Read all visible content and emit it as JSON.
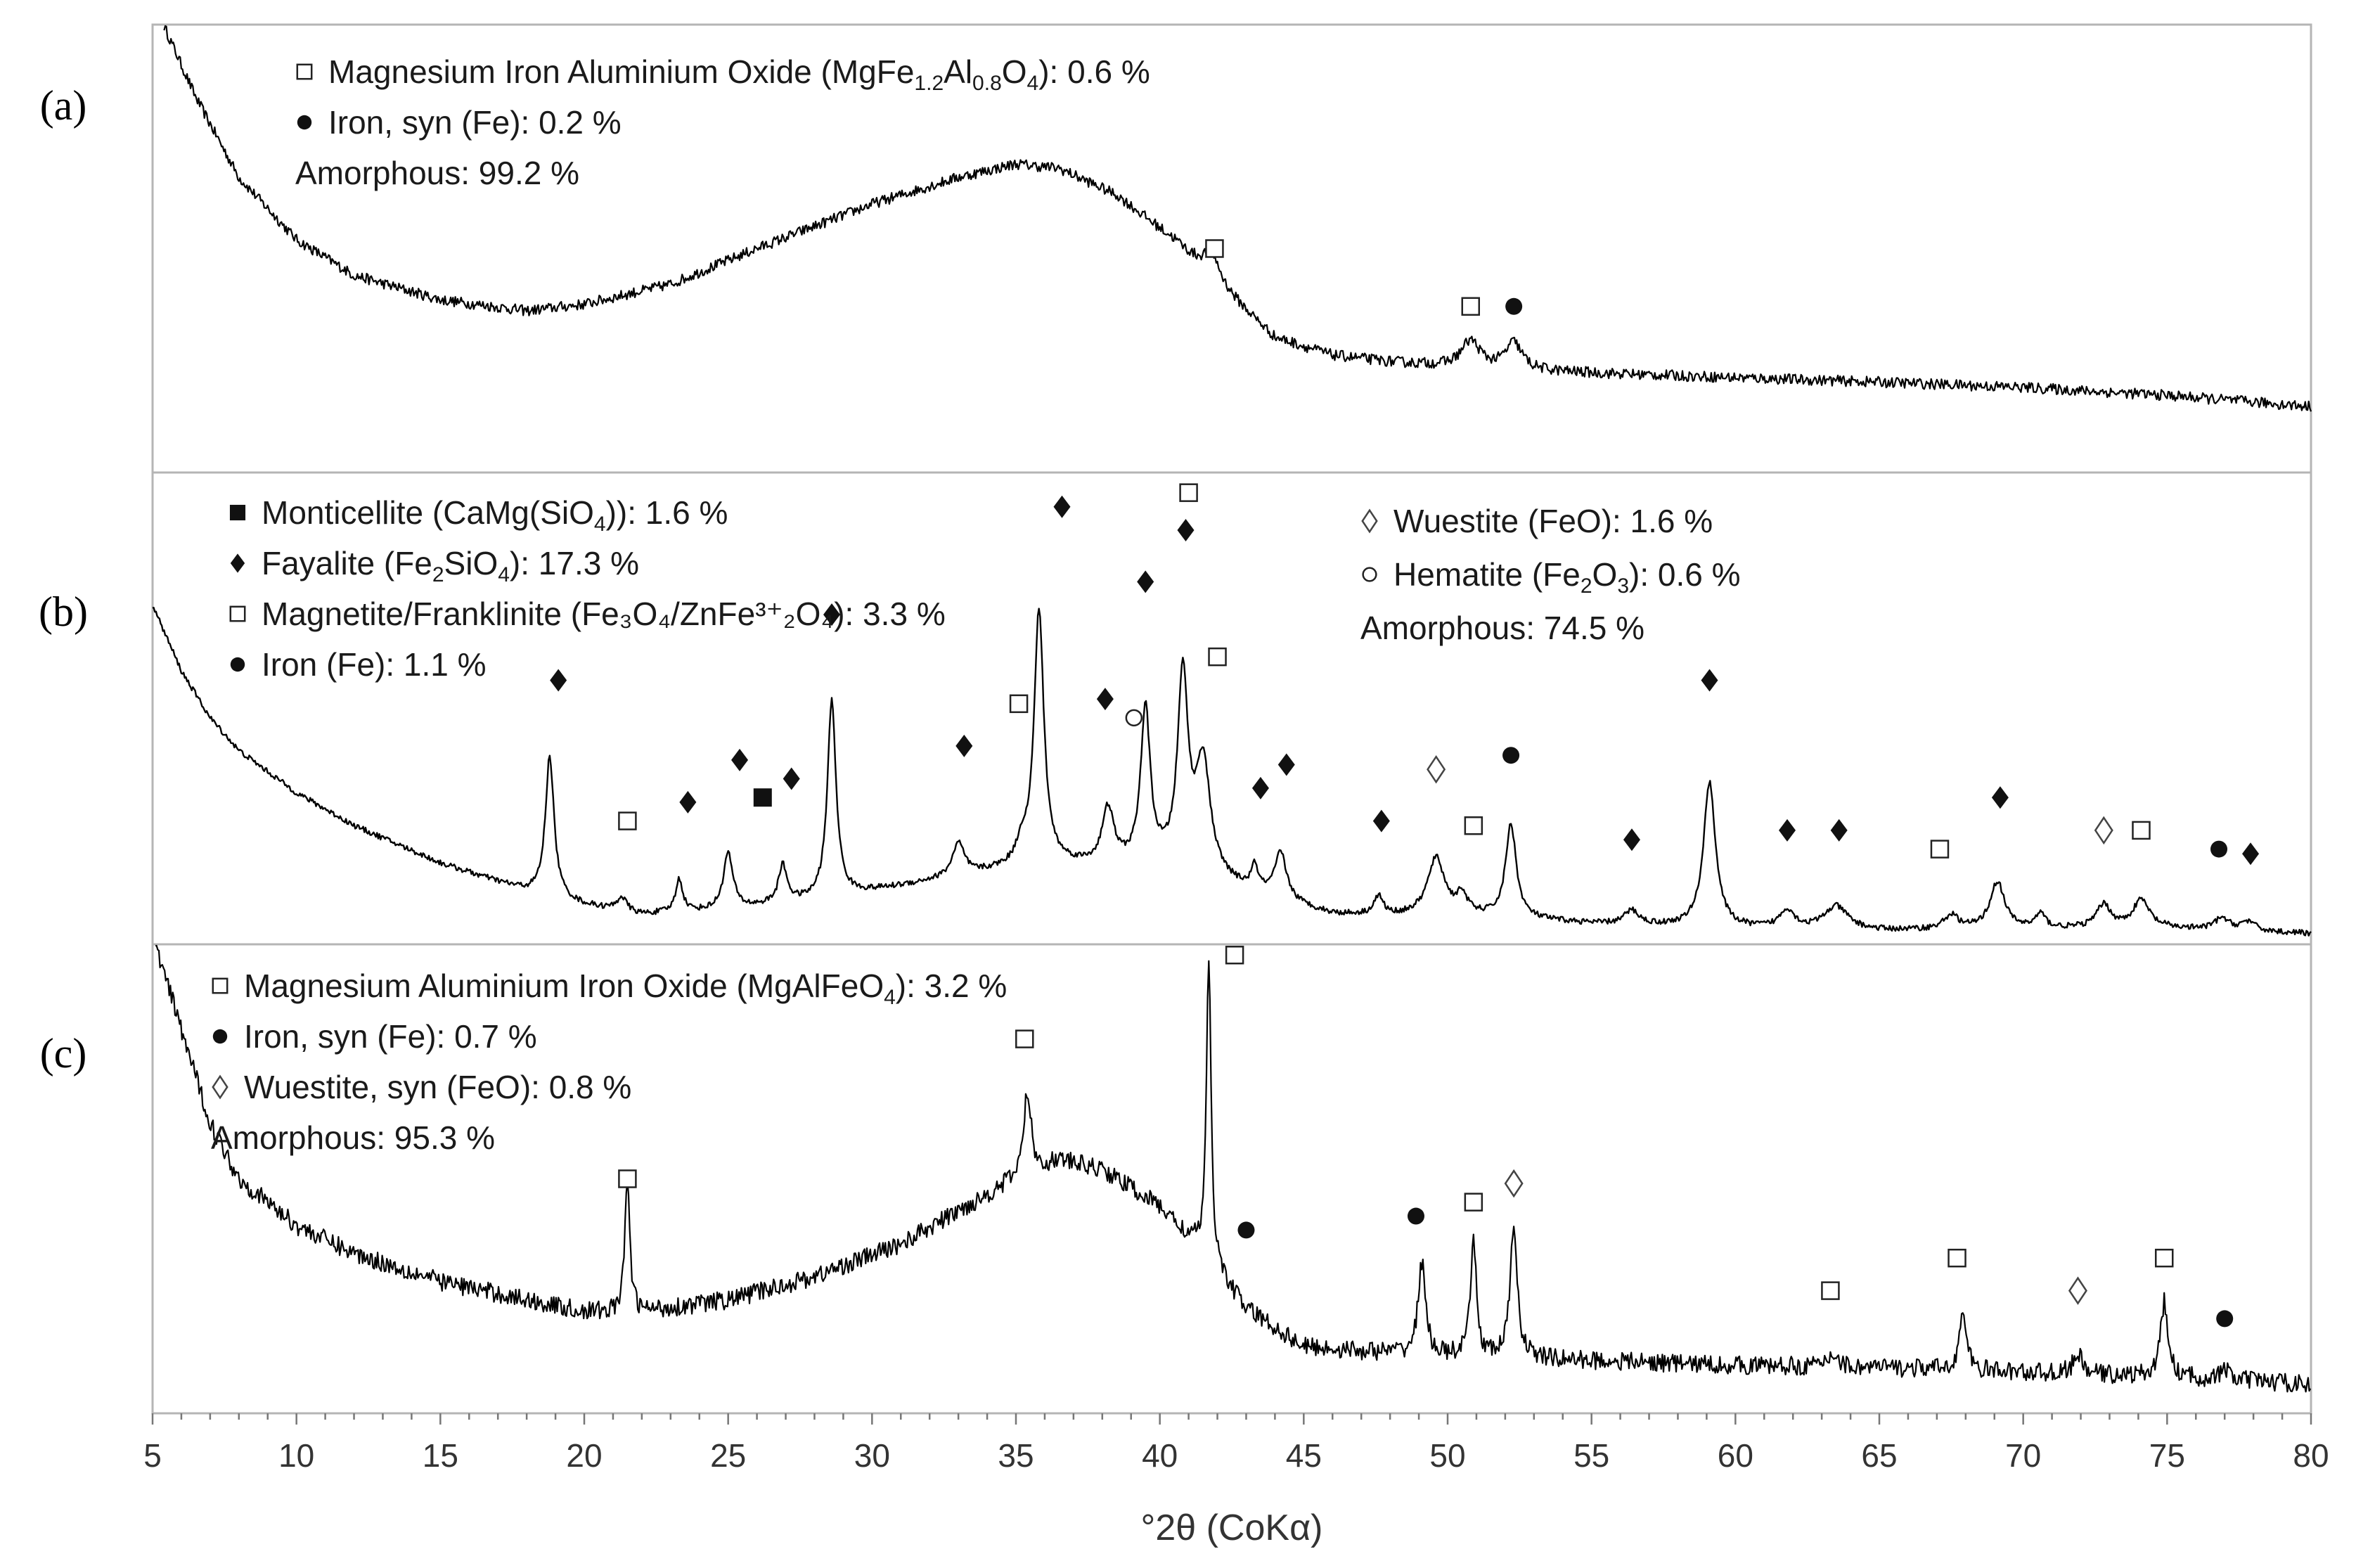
{
  "chart_data": {
    "type": "line",
    "title": "",
    "xlabel": "°2θ (CoKα)",
    "ylabel": "",
    "xlim": [
      5,
      80
    ],
    "xticks": [
      "5",
      "10",
      "15",
      "20",
      "25",
      "30",
      "35",
      "40",
      "45",
      "50",
      "55",
      "60",
      "65",
      "70",
      "75",
      "80"
    ],
    "grid": false,
    "panels": [
      {
        "label": "(a)",
        "legend": [
          {
            "marker": "open-square",
            "parts": [
              {
                "t": "Magnesium Iron Aluminium Oxide (MgFe"
              },
              {
                "t": "1.2",
                "sub": true
              },
              {
                "t": "Al"
              },
              {
                "t": "0.8",
                "sub": true
              },
              {
                "t": "O"
              },
              {
                "t": "4",
                "sub": true
              },
              {
                "t": "): 0.6 %"
              }
            ]
          },
          {
            "marker": "filled-circle",
            "parts": [
              {
                "t": "Iron, syn (Fe): 0.2 %"
              }
            ]
          },
          {
            "marker": "none",
            "parts": [
              {
                "t": "Amorphous: 99.2 %"
              }
            ]
          }
        ],
        "baseline": [
          [
            5.4,
            1.0
          ],
          [
            6.5,
            0.84
          ],
          [
            8,
            0.66
          ],
          [
            10,
            0.52
          ],
          [
            12,
            0.44
          ],
          [
            15,
            0.385
          ],
          [
            18,
            0.36
          ],
          [
            20,
            0.375
          ],
          [
            23,
            0.42
          ],
          [
            26,
            0.5
          ],
          [
            30,
            0.6
          ],
          [
            33,
            0.66
          ],
          [
            35,
            0.69
          ],
          [
            36.5,
            0.68
          ],
          [
            38.5,
            0.62
          ],
          [
            40.5,
            0.52
          ],
          [
            42,
            0.42
          ],
          [
            44,
            0.3
          ],
          [
            46,
            0.26
          ],
          [
            48,
            0.245
          ],
          [
            50,
            0.235
          ],
          [
            53,
            0.225
          ],
          [
            56,
            0.218
          ],
          [
            60,
            0.21
          ],
          [
            65,
            0.2
          ],
          [
            70,
            0.188
          ],
          [
            75,
            0.17
          ],
          [
            80,
            0.145
          ]
        ],
        "peaks": [
          {
            "x": 41.8,
            "height": 0.06,
            "width": 0.35
          },
          {
            "x": 50.8,
            "height": 0.06,
            "width": 0.4
          },
          {
            "x": 52.3,
            "height": 0.06,
            "width": 0.35
          }
        ],
        "noise": 0.012,
        "annotations": [
          {
            "marker": "open-square",
            "x": 41.9,
            "y": 0.5
          },
          {
            "marker": "open-square",
            "x": 50.8,
            "y": 0.37
          },
          {
            "marker": "filled-circle",
            "x": 52.3,
            "y": 0.37
          }
        ]
      },
      {
        "label": "(b)",
        "legend": [
          {
            "marker": "filled-square",
            "parts": [
              {
                "t": "Monticellite (CaMg(SiO"
              },
              {
                "t": "4",
                "sub": true
              },
              {
                "t": ")): 1.6 %"
              }
            ]
          },
          {
            "marker": "filled-diamond",
            "parts": [
              {
                "t": " Fayalite (Fe"
              },
              {
                "t": "2",
                "sub": true
              },
              {
                "t": "SiO"
              },
              {
                "t": "4",
                "sub": true
              },
              {
                "t": "): 17.3 %"
              }
            ]
          },
          {
            "marker": "open-square",
            "parts": [
              {
                "t": "Magnetite/Franklinite (Fe₃O₄/ZnFe³⁺₂O₄): 3.3 %"
              }
            ]
          },
          {
            "marker": "filled-circle",
            "parts": [
              {
                "t": "Iron (Fe): 1.1 %"
              }
            ]
          },
          {
            "marker": "open-diamond",
            "parts": [
              {
                "t": "Wuestite (FeO): 1.6 %"
              }
            ]
          },
          {
            "marker": "open-circle",
            "parts": [
              {
                "t": "Hematite (Fe"
              },
              {
                "t": "2",
                "sub": true
              },
              {
                "t": "O"
              },
              {
                "t": "3",
                "sub": true
              },
              {
                "t": "): 0.6 %"
              }
            ]
          },
          {
            "marker": "none",
            "parts": [
              {
                "t": "Amorphous: 74.5 %"
              }
            ]
          }
        ],
        "baseline": [
          [
            5,
            0.72
          ],
          [
            6,
            0.58
          ],
          [
            7,
            0.48
          ],
          [
            8,
            0.41
          ],
          [
            10,
            0.32
          ],
          [
            12,
            0.25
          ],
          [
            15,
            0.17
          ],
          [
            18,
            0.11
          ],
          [
            20,
            0.08
          ],
          [
            22,
            0.06
          ],
          [
            25,
            0.07
          ],
          [
            28,
            0.09
          ],
          [
            30,
            0.11
          ],
          [
            32,
            0.13
          ],
          [
            34,
            0.15
          ],
          [
            36,
            0.17
          ],
          [
            38,
            0.16
          ],
          [
            40,
            0.16
          ],
          [
            42,
            0.13
          ],
          [
            44,
            0.09
          ],
          [
            46,
            0.06
          ],
          [
            48,
            0.055
          ],
          [
            50,
            0.06
          ],
          [
            55,
            0.04
          ],
          [
            60,
            0.03
          ],
          [
            65,
            0.025
          ],
          [
            70,
            0.03
          ],
          [
            75,
            0.03
          ],
          [
            80,
            0.02
          ]
        ],
        "peaks": [
          {
            "x": 18.8,
            "height": 0.3,
            "width": 0.18
          },
          {
            "x": 21.3,
            "height": 0.03,
            "width": 0.2
          },
          {
            "x": 23.3,
            "height": 0.07,
            "width": 0.15
          },
          {
            "x": 25.0,
            "height": 0.12,
            "width": 0.2
          },
          {
            "x": 26.9,
            "height": 0.08,
            "width": 0.18
          },
          {
            "x": 28.6,
            "height": 0.42,
            "width": 0.18
          },
          {
            "x": 33.0,
            "height": 0.07,
            "width": 0.25
          },
          {
            "x": 35.2,
            "height": 0.04,
            "width": 0.2
          },
          {
            "x": 35.8,
            "height": 0.54,
            "width": 0.2
          },
          {
            "x": 38.2,
            "height": 0.12,
            "width": 0.25
          },
          {
            "x": 39.5,
            "height": 0.33,
            "width": 0.2
          },
          {
            "x": 40.8,
            "height": 0.41,
            "width": 0.22
          },
          {
            "x": 41.5,
            "height": 0.24,
            "width": 0.3
          },
          {
            "x": 43.3,
            "height": 0.05,
            "width": 0.15
          },
          {
            "x": 44.2,
            "height": 0.1,
            "width": 0.25
          },
          {
            "x": 47.6,
            "height": 0.04,
            "width": 0.2
          },
          {
            "x": 49.6,
            "height": 0.12,
            "width": 0.35
          },
          {
            "x": 50.5,
            "height": 0.04,
            "width": 0.2
          },
          {
            "x": 52.2,
            "height": 0.2,
            "width": 0.22
          },
          {
            "x": 56.4,
            "height": 0.03,
            "width": 0.3
          },
          {
            "x": 59.1,
            "height": 0.31,
            "width": 0.25
          },
          {
            "x": 61.8,
            "height": 0.04,
            "width": 0.3
          },
          {
            "x": 63.5,
            "height": 0.05,
            "width": 0.5
          },
          {
            "x": 67.5,
            "height": 0.03,
            "width": 0.3
          },
          {
            "x": 69.1,
            "height": 0.1,
            "width": 0.3
          },
          {
            "x": 70.6,
            "height": 0.03,
            "width": 0.2
          },
          {
            "x": 72.8,
            "height": 0.05,
            "width": 0.3
          },
          {
            "x": 74.1,
            "height": 0.06,
            "width": 0.35
          },
          {
            "x": 76.9,
            "height": 0.025,
            "width": 0.3
          },
          {
            "x": 77.8,
            "height": 0.02,
            "width": 0.3
          }
        ],
        "noise": 0.006,
        "annotations": [
          {
            "marker": "filled-diamond",
            "x": 19.1,
            "y": 0.56
          },
          {
            "marker": "open-square",
            "x": 21.5,
            "y": 0.26
          },
          {
            "marker": "filled-diamond",
            "x": 23.6,
            "y": 0.3
          },
          {
            "marker": "filled-diamond",
            "x": 25.4,
            "y": 0.39
          },
          {
            "marker": "filled-square",
            "x": 26.2,
            "y": 0.31
          },
          {
            "marker": "filled-diamond",
            "x": 27.2,
            "y": 0.35
          },
          {
            "marker": "filled-diamond",
            "x": 28.6,
            "y": 0.7
          },
          {
            "marker": "filled-diamond",
            "x": 33.2,
            "y": 0.42
          },
          {
            "marker": "open-square",
            "x": 35.1,
            "y": 0.51
          },
          {
            "marker": "filled-diamond",
            "x": 36.6,
            "y": 0.93
          },
          {
            "marker": "filled-diamond",
            "x": 38.1,
            "y": 0.52
          },
          {
            "marker": "open-circle",
            "x": 39.1,
            "y": 0.48
          },
          {
            "marker": "filled-diamond",
            "x": 39.5,
            "y": 0.77
          },
          {
            "marker": "filled-diamond",
            "x": 40.9,
            "y": 0.88
          },
          {
            "marker": "open-square",
            "x": 41.0,
            "y": 0.96
          },
          {
            "marker": "open-square",
            "x": 42.0,
            "y": 0.61
          },
          {
            "marker": "filled-diamond",
            "x": 43.5,
            "y": 0.33
          },
          {
            "marker": "filled-diamond",
            "x": 44.4,
            "y": 0.38
          },
          {
            "marker": "filled-diamond",
            "x": 47.7,
            "y": 0.26
          },
          {
            "marker": "open-diamond",
            "x": 49.6,
            "y": 0.37
          },
          {
            "marker": "open-square",
            "x": 50.9,
            "y": 0.25
          },
          {
            "marker": "filled-circle",
            "x": 52.2,
            "y": 0.4
          },
          {
            "marker": "filled-diamond",
            "x": 56.4,
            "y": 0.22
          },
          {
            "marker": "filled-diamond",
            "x": 59.1,
            "y": 0.56
          },
          {
            "marker": "filled-diamond",
            "x": 61.8,
            "y": 0.24
          },
          {
            "marker": "filled-diamond",
            "x": 63.6,
            "y": 0.24
          },
          {
            "marker": "open-square",
            "x": 67.1,
            "y": 0.2
          },
          {
            "marker": "filled-diamond",
            "x": 69.2,
            "y": 0.31
          },
          {
            "marker": "open-diamond",
            "x": 72.8,
            "y": 0.24
          },
          {
            "marker": "open-square",
            "x": 74.1,
            "y": 0.24
          },
          {
            "marker": "filled-circle",
            "x": 76.8,
            "y": 0.2
          },
          {
            "marker": "filled-diamond",
            "x": 77.9,
            "y": 0.19
          }
        ]
      },
      {
        "label": "(c)",
        "legend": [
          {
            "marker": "open-square",
            "parts": [
              {
                "t": "Magnesium Aluminium Iron Oxide (MgAlFeO"
              },
              {
                "t": "4",
                "sub": true
              },
              {
                "t": "): 3.2 %"
              }
            ]
          },
          {
            "marker": "filled-circle",
            "parts": [
              {
                "t": "Iron, syn (Fe): 0.7 %"
              }
            ]
          },
          {
            "marker": "open-diamond",
            "parts": [
              {
                "t": "Wuestite, syn (FeO): 0.8 %"
              }
            ]
          },
          {
            "marker": "none",
            "parts": [
              {
                "t": "Amorphous: 95.3 %"
              }
            ]
          }
        ],
        "baseline": [
          [
            5.1,
            1.0
          ],
          [
            6,
            0.82
          ],
          [
            7,
            0.62
          ],
          [
            8,
            0.5
          ],
          [
            10,
            0.4
          ],
          [
            12,
            0.34
          ],
          [
            15,
            0.28
          ],
          [
            18,
            0.24
          ],
          [
            20,
            0.215
          ],
          [
            22,
            0.215
          ],
          [
            25,
            0.24
          ],
          [
            28,
            0.29
          ],
          [
            31,
            0.36
          ],
          [
            33,
            0.43
          ],
          [
            35,
            0.5
          ],
          [
            36.5,
            0.54
          ],
          [
            38,
            0.52
          ],
          [
            40,
            0.44
          ],
          [
            41.5,
            0.34
          ],
          [
            43,
            0.22
          ],
          [
            45,
            0.14
          ],
          [
            47,
            0.13
          ],
          [
            50,
            0.12
          ],
          [
            55,
            0.11
          ],
          [
            60,
            0.1
          ],
          [
            65,
            0.095
          ],
          [
            70,
            0.085
          ],
          [
            75,
            0.075
          ],
          [
            80,
            0.06
          ]
        ],
        "peaks": [
          {
            "x": 21.5,
            "height": 0.29,
            "width": 0.1
          },
          {
            "x": 35.4,
            "height": 0.18,
            "width": 0.15
          },
          {
            "x": 41.7,
            "height": 0.63,
            "width": 0.1
          },
          {
            "x": 49.1,
            "height": 0.2,
            "width": 0.15
          },
          {
            "x": 50.9,
            "height": 0.25,
            "width": 0.12
          },
          {
            "x": 52.3,
            "height": 0.28,
            "width": 0.15
          },
          {
            "x": 63.4,
            "height": 0.03,
            "width": 0.2
          },
          {
            "x": 67.9,
            "height": 0.12,
            "width": 0.15
          },
          {
            "x": 71.9,
            "height": 0.04,
            "width": 0.2
          },
          {
            "x": 74.9,
            "height": 0.16,
            "width": 0.15
          },
          {
            "x": 77.0,
            "height": 0.02,
            "width": 0.2
          }
        ],
        "noise": 0.02,
        "annotations": [
          {
            "marker": "open-square",
            "x": 42.6,
            "y": 0.98
          },
          {
            "marker": "open-square",
            "x": 35.3,
            "y": 0.8
          },
          {
            "marker": "open-square",
            "x": 21.5,
            "y": 0.5
          },
          {
            "marker": "filled-circle",
            "x": 43.0,
            "y": 0.39
          },
          {
            "marker": "filled-circle",
            "x": 48.9,
            "y": 0.42
          },
          {
            "marker": "open-square",
            "x": 50.9,
            "y": 0.45
          },
          {
            "marker": "open-diamond",
            "x": 52.3,
            "y": 0.49
          },
          {
            "marker": "open-square",
            "x": 63.3,
            "y": 0.26
          },
          {
            "marker": "open-square",
            "x": 67.7,
            "y": 0.33
          },
          {
            "marker": "open-diamond",
            "x": 71.9,
            "y": 0.26
          },
          {
            "marker": "open-square",
            "x": 74.9,
            "y": 0.33
          },
          {
            "marker": "filled-circle",
            "x": 77.0,
            "y": 0.2
          }
        ]
      }
    ]
  }
}
